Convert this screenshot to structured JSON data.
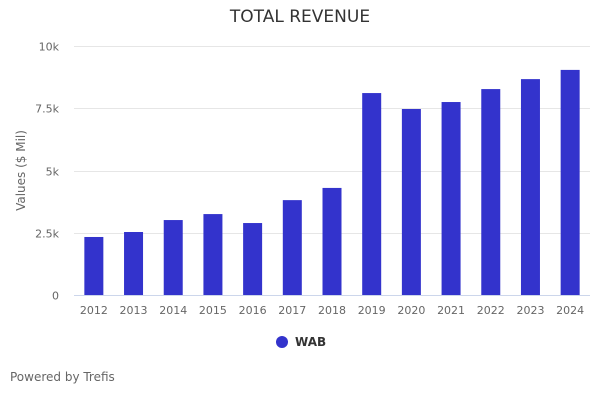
{
  "chart_data": {
    "type": "bar",
    "title": "TOTAL REVENUE",
    "xlabel": "",
    "ylabel": "Values ($ Mil)",
    "ylim": [
      0,
      10000
    ],
    "yticks": [
      0,
      2500,
      5000,
      7500,
      10000
    ],
    "ytick_labels": [
      "0",
      "2.5k",
      "5k",
      "7.5k",
      "10k"
    ],
    "grid": true,
    "legend_position": "bottom",
    "categories": [
      "2012",
      "2013",
      "2014",
      "2015",
      "2016",
      "2017",
      "2018",
      "2019",
      "2020",
      "2021",
      "2022",
      "2023",
      "2024"
    ],
    "series": [
      {
        "name": "WAB",
        "color": "#3333cc",
        "values": [
          2330,
          2530,
          3010,
          3250,
          2890,
          3810,
          4300,
          8110,
          7470,
          7750,
          8270,
          8670,
          9040
        ]
      }
    ]
  },
  "footer": {
    "credit": "Powered by Trefis"
  }
}
